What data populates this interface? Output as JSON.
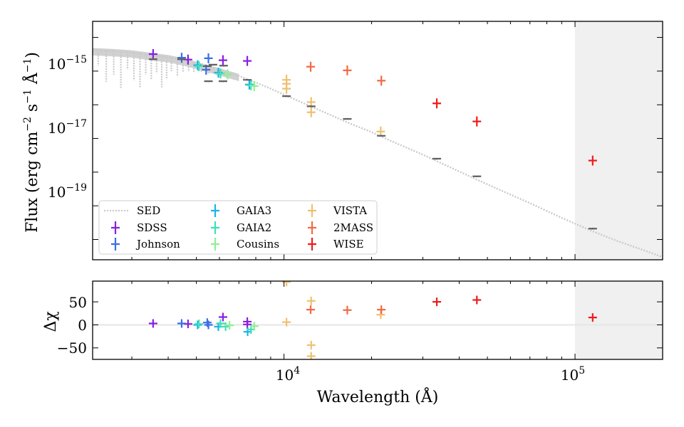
{
  "chart_data": [
    {
      "id": "sed",
      "type": "scatter",
      "xscale": "log",
      "yscale": "log",
      "xlim": [
        2200,
        200000
      ],
      "ylim": [
        2.5e-21,
        3e-14
      ],
      "xticks": [
        {
          "value": 10000,
          "label": "10",
          "exp": "4"
        },
        {
          "value": 100000,
          "label": "10",
          "exp": "5"
        }
      ],
      "yticks": [
        {
          "value": 1e-15,
          "label": "10",
          "exp": "−15"
        },
        {
          "value": 1e-17,
          "label": "10",
          "exp": "−17"
        },
        {
          "value": 1e-19,
          "label": "10",
          "exp": "−19"
        }
      ],
      "ylabel": {
        "main": "Flux (erg cm",
        "e1": "−2",
        "mid": " s",
        "e2": "−1",
        "mid2": " Å",
        "e3": "−1",
        "end": ")"
      },
      "shaded_region": {
        "from": 100000,
        "to": 200000,
        "color": "#f0f0f0"
      },
      "model": {
        "name": "SED",
        "color": "#c9c9c9",
        "style": "dotted",
        "x": [
          2200,
          2600,
          3000,
          3500,
          4000,
          4500,
          5000,
          5500,
          6000,
          7000,
          8000,
          9000,
          10000,
          12000,
          14000,
          16500,
          20000,
          22000,
          25000,
          30000,
          34000,
          40000,
          46000,
          55000,
          70000,
          90000,
          115000,
          140000,
          170000,
          200000
        ],
        "y": [
          4.2e-15,
          3.9e-15,
          3.6e-15,
          3e-15,
          2.6e-15,
          2.1e-15,
          1.65e-15,
          1.3e-15,
          1.05e-15,
          7.2e-16,
          4.6e-16,
          3e-16,
          2e-16,
          1e-16,
          5.6e-17,
          3e-17,
          1.55e-17,
          1.05e-17,
          6.5e-18,
          3.3e-18,
          2e-18,
          1.05e-18,
          6e-19,
          3e-19,
          1.2e-19,
          4.4e-20,
          1.75e-20,
          9e-21,
          5e-21,
          3e-21
        ]
      },
      "model_absorption_x": [
        2300,
        2450,
        2600,
        2750,
        2900,
        3050,
        3200,
        3350,
        3500,
        3650,
        3800,
        3950,
        4100,
        4300,
        4500,
        4700,
        4900,
        5200,
        5500,
        5900,
        6300
      ],
      "model_absorption_depth": [
        0.35,
        0.12,
        0.2,
        0.08,
        0.3,
        0.15,
        0.1,
        0.25,
        0.18,
        0.3,
        0.12,
        0.22,
        0.4,
        0.3,
        0.45,
        0.5,
        0.55,
        0.6,
        0.65,
        0.7,
        0.75
      ],
      "model_observed_points": {
        "color": "#606060",
        "x": [
          3550,
          4450,
          5450,
          5500,
          5700,
          6170,
          6200,
          7480,
          10200,
          12400,
          16500,
          21600,
          33500,
          46000,
          115000
        ],
        "y": [
          2.25e-15,
          2.25e-15,
          1.4e-15,
          5e-16,
          1.55e-15,
          5e-16,
          1.45e-15,
          5.5e-16,
          1.8e-16,
          9e-17,
          3.8e-17,
          1.2e-17,
          2.5e-18,
          7.5e-19,
          2.1e-20
        ]
      },
      "series": [
        {
          "name": "SDSS",
          "color": "#8b1ee0",
          "x": [
            3550,
            4680,
            6170,
            7480
          ],
          "y": [
            3.2e-15,
            2.2e-15,
            2.1e-15,
            2e-15
          ]
        },
        {
          "name": "Johnson",
          "color": "#3a6fe6",
          "x": [
            4450,
            5400,
            5500
          ],
          "y": [
            2.5e-15,
            1.1e-15,
            2.4e-15
          ]
        },
        {
          "name": "GAIA3",
          "color": "#19b4e8",
          "x": [
            5050,
            5950,
            7600
          ],
          "y": [
            1.5e-15,
            9e-16,
            4e-16
          ]
        },
        {
          "name": "GAIA2",
          "color": "#3fe0b8",
          "x": [
            5100,
            6050,
            7700
          ],
          "y": [
            1.4e-15,
            8.5e-16,
            3.8e-16
          ]
        },
        {
          "name": "Cousins",
          "color": "#8eef97",
          "x": [
            6400,
            7900
          ],
          "y": [
            8e-16,
            3.6e-16
          ]
        },
        {
          "name": "VISTA",
          "color": "#eec070",
          "x": [
            10200,
            10200,
            10200,
            12400,
            12400,
            21500
          ],
          "y": [
            5.5e-16,
            4.2e-16,
            3e-16,
            1.2e-16,
            6e-17,
            1.6e-17
          ]
        },
        {
          "name": "2MASS",
          "color": "#f26a45",
          "x": [
            12350,
            16500,
            21600
          ],
          "y": [
            1.35e-15,
            1.05e-15,
            5.2e-16
          ]
        },
        {
          "name": "WISE",
          "color": "#ee1c1c",
          "x": [
            33500,
            46000,
            115000
          ],
          "y": [
            1.1e-16,
            3.2e-17,
            2.2e-18
          ]
        }
      ],
      "legend": {
        "location": "lower-left",
        "columns": 3
      }
    },
    {
      "id": "residuals",
      "type": "scatter",
      "xscale": "log",
      "xlim": [
        2200,
        200000
      ],
      "ylim": [
        -75,
        95
      ],
      "yticks": [
        {
          "value": 50,
          "label": "50"
        },
        {
          "value": 0,
          "label": "0"
        },
        {
          "value": -50,
          "label": "−50"
        }
      ],
      "ylabel": "Δχ",
      "xlabel": "Wavelength (Å)",
      "zero_line": {
        "value": 0,
        "color": "#e6e6e6"
      },
      "shaded_region": {
        "from": 100000,
        "to": 200000,
        "color": "#f0f0f0"
      },
      "series": [
        {
          "name": "SDSS",
          "color": "#8b1ee0",
          "x": [
            3550,
            4680,
            6170,
            7480,
            7480
          ],
          "y": [
            3,
            2,
            17,
            7,
            1
          ]
        },
        {
          "name": "Johnson",
          "color": "#3a6fe6",
          "x": [
            4450,
            5450,
            5500
          ],
          "y": [
            3,
            5,
            0
          ]
        },
        {
          "name": "GAIA3",
          "color": "#19b4e8",
          "x": [
            5050,
            5950,
            7500
          ],
          "y": [
            0,
            -4,
            -15
          ]
        },
        {
          "name": "GAIA2",
          "color": "#3fe0b8",
          "x": [
            5100,
            6050,
            6300,
            7700
          ],
          "y": [
            2,
            3,
            -4,
            -10
          ]
        },
        {
          "name": "Cousins",
          "color": "#8eef97",
          "x": [
            6500,
            7900
          ],
          "y": [
            -1,
            -3
          ]
        },
        {
          "name": "VISTA",
          "color": "#eec070",
          "x": [
            10200,
            10200,
            12400,
            12400,
            12400,
            21500
          ],
          "y": [
            93,
            6,
            52,
            -44,
            -68,
            22
          ]
        },
        {
          "name": "2MASS",
          "color": "#f26a45",
          "x": [
            12350,
            16500,
            21600
          ],
          "y": [
            33,
            32,
            33
          ]
        },
        {
          "name": "WISE",
          "color": "#ee1c1c",
          "x": [
            33500,
            46000,
            115000
          ],
          "y": [
            50,
            54,
            16
          ]
        }
      ]
    }
  ]
}
